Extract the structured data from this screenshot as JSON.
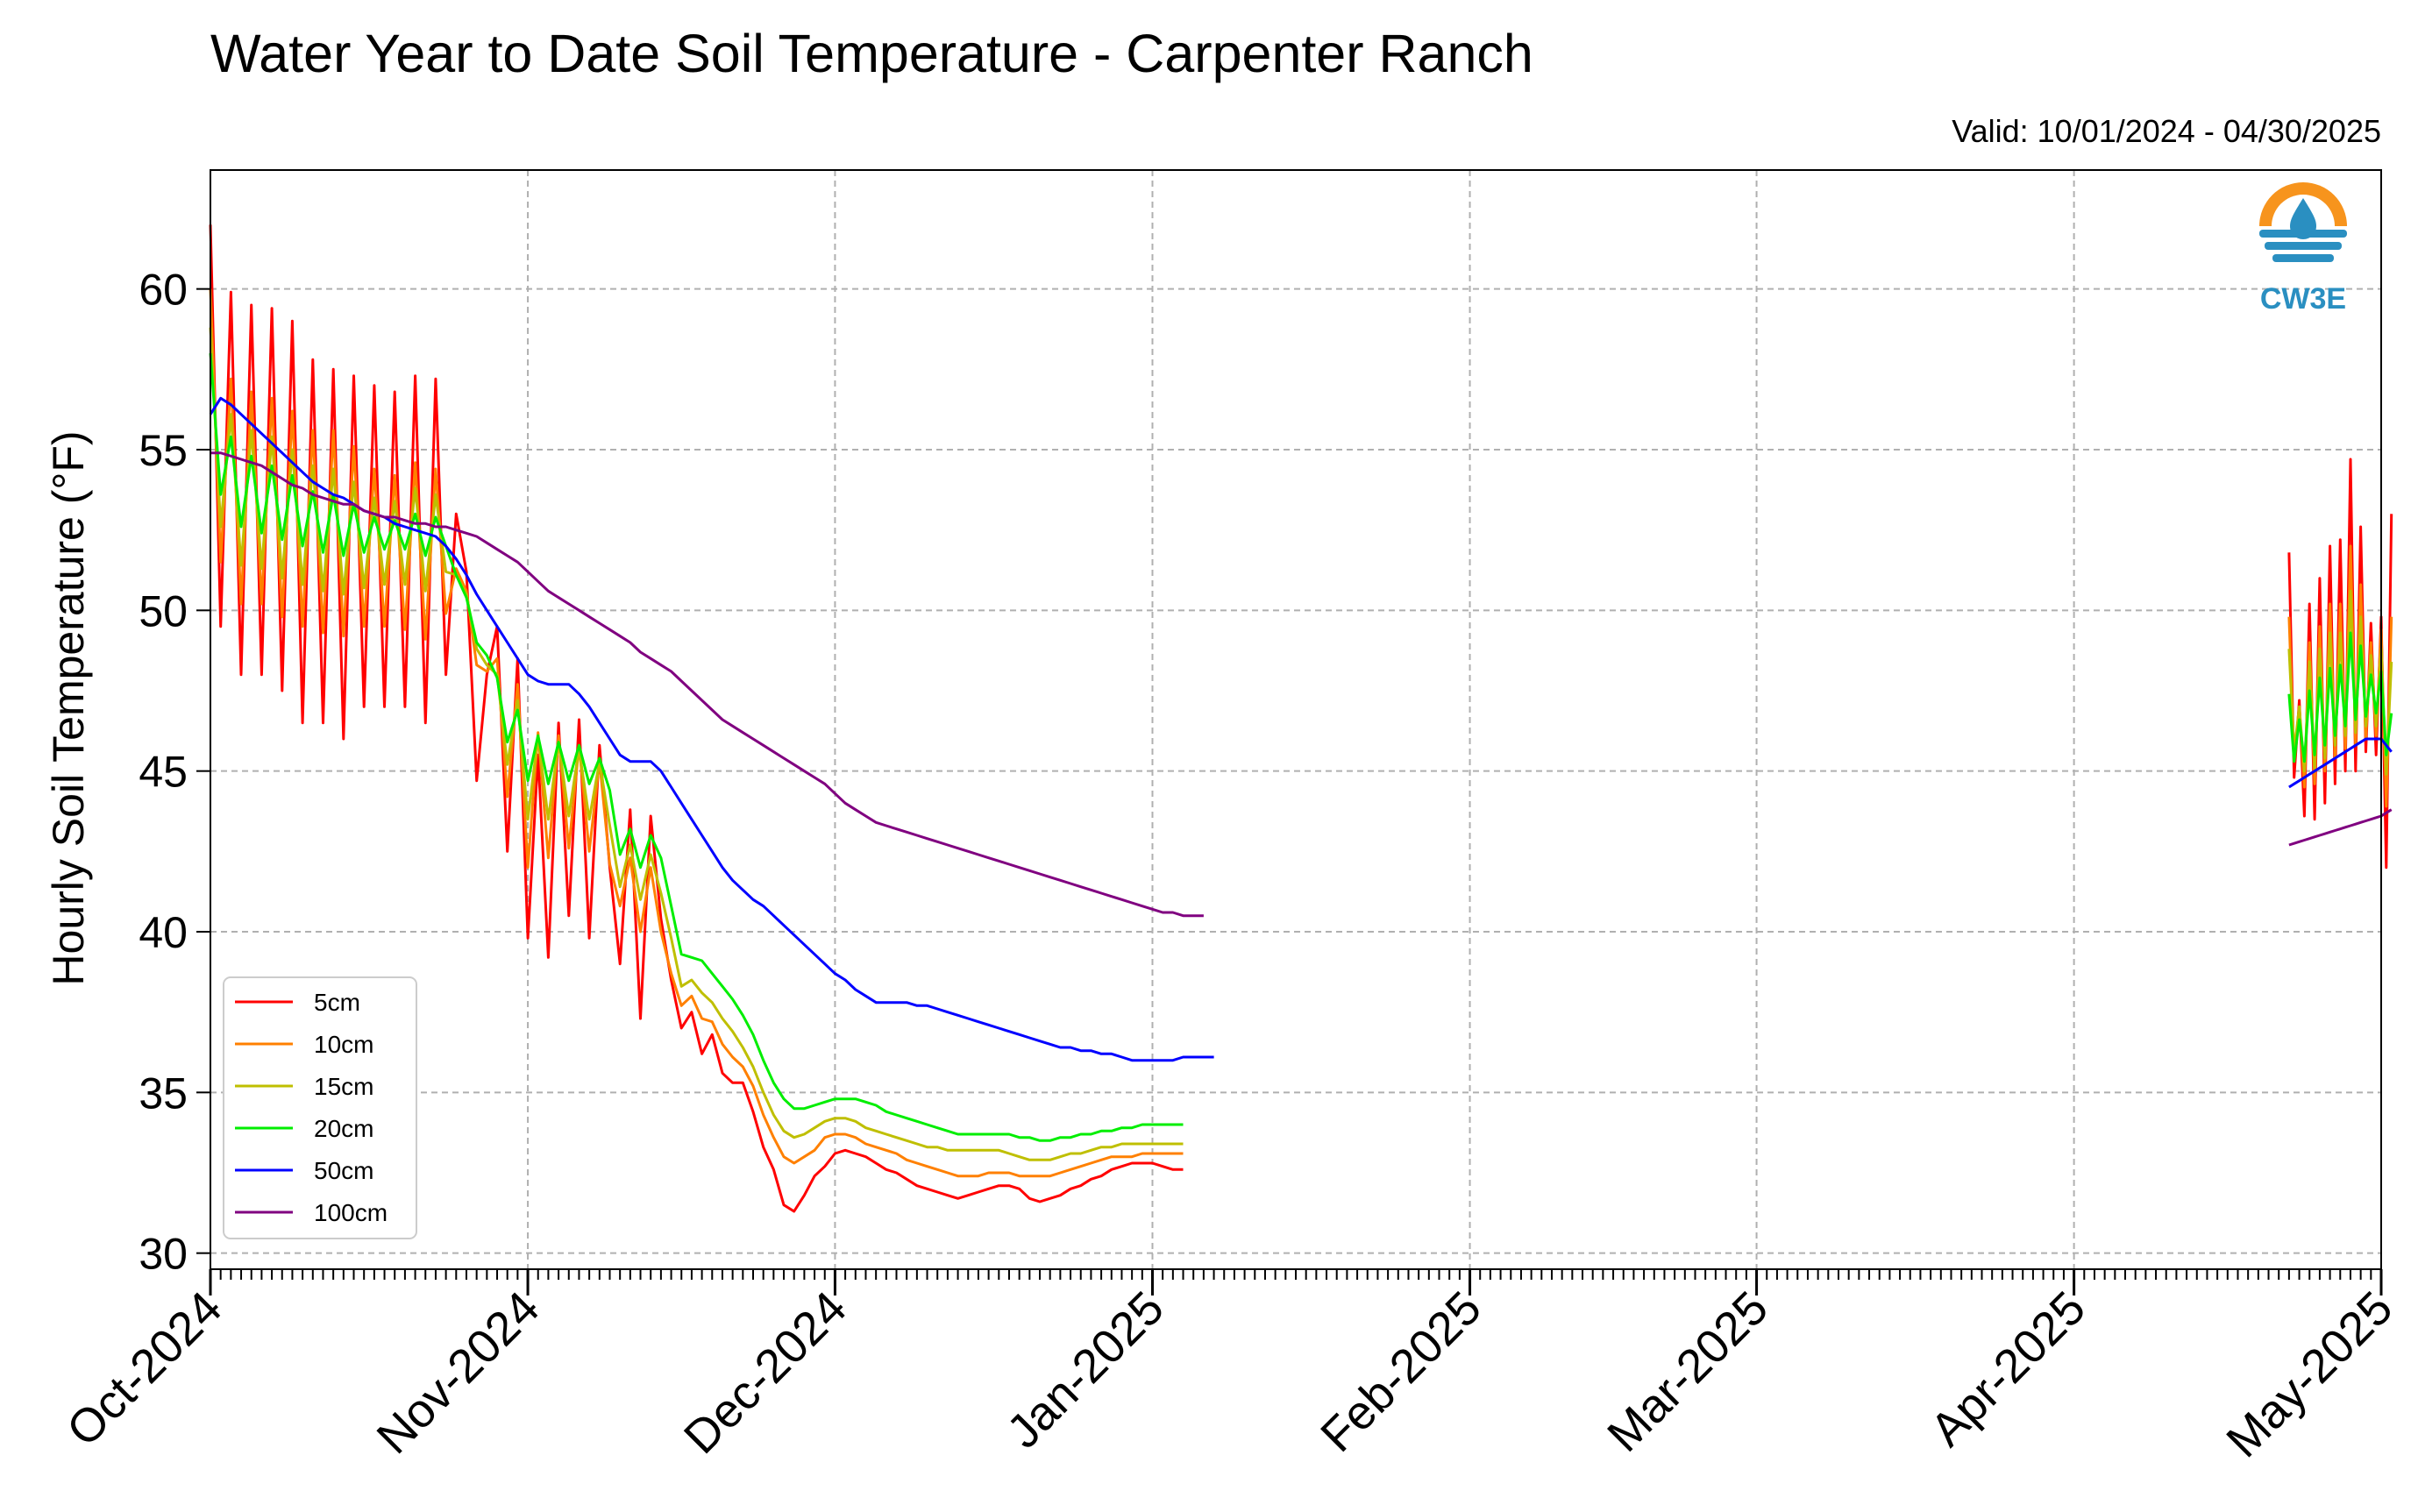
{
  "chart_data": {
    "type": "line",
    "title": "Water Year to Date Soil Temperature - Carpenter Ranch",
    "subtitle": "Valid: 10/01/2024 - 04/30/2025",
    "ylabel": "Hourly Soil Temperature (°F)",
    "xlabel": "",
    "ylim": [
      29.5,
      63.7
    ],
    "xlim": [
      "2024-10-01",
      "2025-05-01"
    ],
    "grid": true,
    "legend_position": "lower-left",
    "x_tick_labels": [
      "Oct-2024",
      "Nov-2024",
      "Dec-2024",
      "Jan-2025",
      "Feb-2025",
      "Mar-2025",
      "Apr-2025",
      "May-2025"
    ],
    "x_tick_dates": [
      "2024-10-01",
      "2024-11-01",
      "2024-12-01",
      "2025-01-01",
      "2025-02-01",
      "2025-03-01",
      "2025-04-01",
      "2025-05-01"
    ],
    "y_ticks": [
      30,
      35,
      40,
      45,
      50,
      55,
      60
    ],
    "logo_text": "CW3E",
    "series": [
      {
        "name": "5cm",
        "color": "#ff0000",
        "segments": [
          {
            "start": "2024-10-01",
            "step_days": 1,
            "values": [
              62,
              49.5,
              59.9,
              48,
              59.5,
              48,
              59.4,
              47.5,
              59,
              46.5,
              57.8,
              46.5,
              57.5,
              46,
              57.3,
              47,
              57,
              47,
              56.8,
              47,
              57.3,
              46.5,
              57.2,
              48,
              53,
              51.2,
              44.7,
              48,
              49.5,
              42.5,
              48.5,
              39.8,
              45.5,
              39.2,
              46.5,
              40.5,
              46.6,
              39.8,
              45.8,
              42,
              39,
              43.8,
              37.3,
              43.6,
              40.4,
              38.5,
              37,
              37.5,
              36.2,
              36.8,
              35.6,
              35.3,
              35.3,
              34.4,
              33.3,
              32.6,
              31.5,
              31.3,
              31.8,
              32.4,
              32.7,
              33.1,
              33.2,
              33.1,
              33,
              32.8,
              32.6,
              32.5,
              32.3,
              32.1,
              32,
              31.9,
              31.8,
              31.7,
              31.8,
              31.9,
              32,
              32.1,
              32.1,
              32,
              31.7,
              31.6,
              31.7,
              31.8,
              32,
              32.1,
              32.3,
              32.4,
              32.6,
              32.7,
              32.8,
              32.8,
              32.8,
              32.7,
              32.6,
              32.6
            ]
          },
          {
            "start": "2025-04-22",
            "step_days": 0.5,
            "values": [
              51.8,
              44.8,
              47.2,
              43.6,
              50.2,
              43.5,
              51,
              44,
              52,
              44.6,
              52.2,
              45,
              54.7,
              45,
              52.6,
              45.6,
              49.6,
              45.5,
              49.8,
              42,
              53
            ]
          }
        ]
      },
      {
        "name": "10cm",
        "color": "#ff8000",
        "segments": [
          {
            "start": "2024-10-01",
            "step_days": 1,
            "values": [
              60,
              51.5,
              57.2,
              50.2,
              56.8,
              50.2,
              56.6,
              49.8,
              56.2,
              49.5,
              55.6,
              49.3,
              55.6,
              49.2,
              55.1,
              49.5,
              54.4,
              49.5,
              54.2,
              49.4,
              54.6,
              49.1,
              54.4,
              49.9,
              51.3,
              50.6,
              48.3,
              48.1,
              48.5,
              44.2,
              47.7,
              42,
              46.2,
              42.3,
              46.1,
              42.6,
              45.8,
              42.5,
              45.3,
              42.1,
              40.8,
              42.3,
              40,
              42,
              40,
              38.7,
              37.7,
              38,
              37.3,
              37.2,
              36.5,
              36.1,
              35.8,
              35.2,
              34.3,
              33.6,
              33,
              32.8,
              33,
              33.2,
              33.6,
              33.7,
              33.7,
              33.6,
              33.4,
              33.3,
              33.2,
              33.1,
              32.9,
              32.8,
              32.7,
              32.6,
              32.5,
              32.4,
              32.4,
              32.4,
              32.5,
              32.5,
              32.5,
              32.4,
              32.4,
              32.4,
              32.4,
              32.5,
              32.6,
              32.7,
              32.8,
              32.9,
              33,
              33,
              33,
              33.1,
              33.1,
              33.1,
              33.1,
              33.1
            ]
          },
          {
            "start": "2025-04-22",
            "step_days": 0.5,
            "values": [
              49.8,
              45.3,
              47,
              44.5,
              49,
              44.6,
              49.5,
              45,
              50.2,
              45.4,
              50.2,
              45.7,
              52,
              45.8,
              50.8,
              46,
              49,
              46.1,
              49.4,
              43.9,
              49.8
            ]
          }
        ]
      },
      {
        "name": "15cm",
        "color": "#bfbf00",
        "segments": [
          {
            "start": "2024-10-01",
            "step_days": 1,
            "values": [
              58.8,
              52.6,
              56.1,
              51.4,
              55.6,
              51.3,
              55.4,
              51,
              55,
              50.8,
              54.5,
              50.6,
              54.4,
              50.5,
              54,
              50.7,
              53.5,
              50.8,
              53.4,
              50.8,
              53.8,
              50.6,
              53.6,
              51.2,
              51.1,
              50.5,
              48.8,
              48.3,
              48,
              45.2,
              47.2,
              43.5,
              46.1,
              43.5,
              45.9,
              43.6,
              45.7,
              43.5,
              45.3,
              43.3,
              41.4,
              42.7,
              41,
              42.4,
              41.2,
              39.8,
              38.3,
              38.5,
              38.1,
              37.8,
              37.3,
              36.9,
              36.4,
              35.8,
              35,
              34.3,
              33.8,
              33.6,
              33.7,
              33.9,
              34.1,
              34.2,
              34.2,
              34.1,
              33.9,
              33.8,
              33.7,
              33.6,
              33.5,
              33.4,
              33.3,
              33.3,
              33.2,
              33.2,
              33.2,
              33.2,
              33.2,
              33.2,
              33.1,
              33,
              32.9,
              32.9,
              32.9,
              33,
              33.1,
              33.1,
              33.2,
              33.3,
              33.3,
              33.4,
              33.4,
              33.4,
              33.4,
              33.4,
              33.4,
              33.4
            ]
          },
          {
            "start": "2025-04-22",
            "step_days": 0.5,
            "values": [
              48.8,
              45.6,
              47,
              45,
              48.4,
              45.1,
              48.8,
              45.4,
              49.3,
              45.8,
              49.3,
              46.1,
              50.6,
              46.2,
              49.8,
              46.4,
              48.6,
              46.4,
              48.8,
              44.9,
              48.4
            ]
          }
        ]
      },
      {
        "name": "20cm",
        "color": "#00ee00",
        "segments": [
          {
            "start": "2024-10-01",
            "step_days": 1,
            "values": [
              58,
              53.6,
              55.4,
              52.6,
              54.8,
              52.4,
              54.5,
              52.2,
              54.2,
              52,
              53.7,
              51.8,
              53.6,
              51.7,
              53.3,
              51.8,
              52.9,
              51.9,
              52.8,
              51.9,
              53,
              51.7,
              52.9,
              52,
              51.1,
              50.4,
              49,
              48.6,
              47.9,
              45.9,
              46.9,
              44.7,
              46.1,
              44.6,
              45.9,
              44.7,
              45.8,
              44.6,
              45.4,
              44.4,
              42.4,
              43.2,
              42,
              43,
              42.3,
              40.8,
              39.3,
              39.2,
              39.1,
              38.7,
              38.3,
              37.9,
              37.4,
              36.8,
              36,
              35.3,
              34.8,
              34.5,
              34.5,
              34.6,
              34.7,
              34.8,
              34.8,
              34.8,
              34.7,
              34.6,
              34.4,
              34.3,
              34.2,
              34.1,
              34,
              33.9,
              33.8,
              33.7,
              33.7,
              33.7,
              33.7,
              33.7,
              33.7,
              33.6,
              33.6,
              33.5,
              33.5,
              33.6,
              33.6,
              33.7,
              33.7,
              33.8,
              33.8,
              33.9,
              33.9,
              34,
              34,
              34,
              34,
              34
            ]
          },
          {
            "start": "2025-04-22",
            "step_days": 0.5,
            "values": [
              47.4,
              45.3,
              46.6,
              45.3,
              47.5,
              45.5,
              47.9,
              45.8,
              48.2,
              46.1,
              48.3,
              46.4,
              49.3,
              46.6,
              48.9,
              46.7,
              48,
              46.8,
              48.1,
              45.5,
              46.8
            ]
          }
        ]
      },
      {
        "name": "50cm",
        "color": "#0000ff",
        "segments": [
          {
            "start": "2024-10-01",
            "step_days": 1,
            "values": [
              56.1,
              56.6,
              56.4,
              56.1,
              55.8,
              55.5,
              55.2,
              54.9,
              54.6,
              54.3,
              54,
              53.8,
              53.6,
              53.5,
              53.3,
              53.1,
              53,
              52.9,
              52.7,
              52.6,
              52.5,
              52.4,
              52.3,
              52,
              51.6,
              51.1,
              50.5,
              50,
              49.5,
              49,
              48.5,
              48,
              47.8,
              47.7,
              47.7,
              47.7,
              47.4,
              47,
              46.5,
              46,
              45.5,
              45.3,
              45.3,
              45.3,
              45,
              44.5,
              44,
              43.5,
              43,
              42.5,
              42,
              41.6,
              41.3,
              41,
              40.8,
              40.5,
              40.2,
              39.9,
              39.6,
              39.3,
              39,
              38.7,
              38.5,
              38.2,
              38,
              37.8,
              37.8,
              37.8,
              37.8,
              37.7,
              37.7,
              37.6,
              37.5,
              37.4,
              37.3,
              37.2,
              37.1,
              37,
              36.9,
              36.8,
              36.7,
              36.6,
              36.5,
              36.4,
              36.4,
              36.3,
              36.3,
              36.2,
              36.2,
              36.1,
              36,
              36,
              36,
              36,
              36,
              36.1,
              36.1,
              36.1,
              36.1
            ]
          },
          {
            "start": "2025-04-22",
            "step_days": 0.5,
            "values": [
              44.5,
              44.6,
              44.7,
              44.8,
              44.9,
              45,
              45.1,
              45.2,
              45.3,
              45.4,
              45.5,
              45.6,
              45.7,
              45.8,
              45.9,
              46,
              46,
              46,
              46,
              45.8,
              45.6
            ]
          }
        ]
      },
      {
        "name": "100cm",
        "color": "#800080",
        "segments": [
          {
            "start": "2024-10-01",
            "step_days": 1,
            "values": [
              54.9,
              54.9,
              54.8,
              54.7,
              54.6,
              54.5,
              54.3,
              54.1,
              53.9,
              53.8,
              53.6,
              53.5,
              53.4,
              53.3,
              53.3,
              53.1,
              53,
              52.9,
              52.9,
              52.8,
              52.7,
              52.7,
              52.6,
              52.6,
              52.5,
              52.4,
              52.3,
              52.1,
              51.9,
              51.7,
              51.5,
              51.2,
              50.9,
              50.6,
              50.4,
              50.2,
              50,
              49.8,
              49.6,
              49.4,
              49.2,
              49,
              48.7,
              48.5,
              48.3,
              48.1,
              47.8,
              47.5,
              47.2,
              46.9,
              46.6,
              46.4,
              46.2,
              46,
              45.8,
              45.6,
              45.4,
              45.2,
              45,
              44.8,
              44.6,
              44.3,
              44,
              43.8,
              43.6,
              43.4,
              43.3,
              43.2,
              43.1,
              43,
              42.9,
              42.8,
              42.7,
              42.6,
              42.5,
              42.4,
              42.3,
              42.2,
              42.1,
              42,
              41.9,
              41.8,
              41.7,
              41.6,
              41.5,
              41.4,
              41.3,
              41.2,
              41.1,
              41,
              40.9,
              40.8,
              40.7,
              40.6,
              40.6,
              40.5,
              40.5,
              40.5
            ]
          },
          {
            "start": "2025-04-22",
            "step_days": 0.5,
            "values": [
              42.7,
              42.75,
              42.8,
              42.85,
              42.9,
              42.95,
              43,
              43.05,
              43.1,
              43.15,
              43.2,
              43.25,
              43.3,
              43.35,
              43.4,
              43.45,
              43.5,
              43.55,
              43.6,
              43.7,
              43.8
            ]
          }
        ]
      }
    ]
  }
}
